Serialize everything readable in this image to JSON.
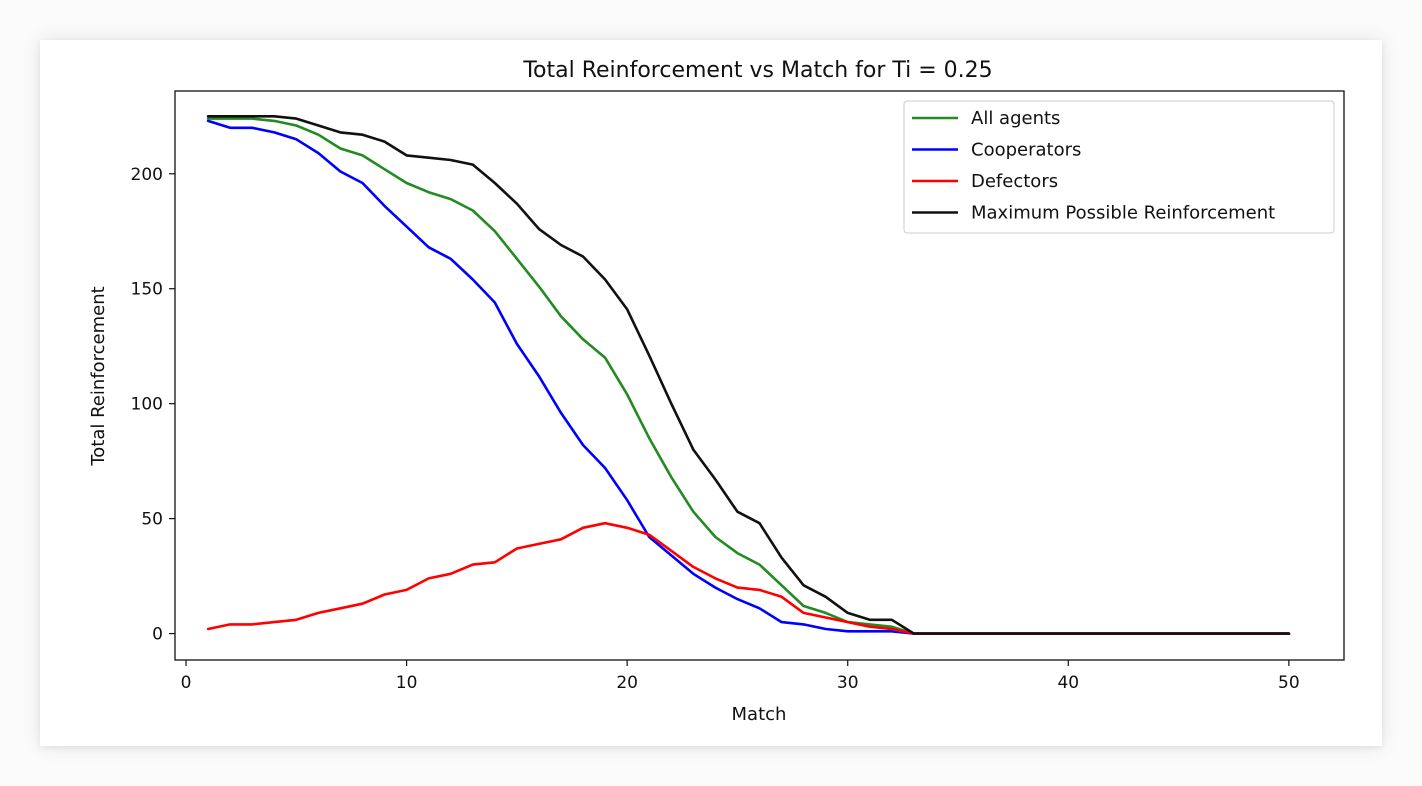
{
  "chart_data": {
    "type": "line",
    "title": "Total Reinforcement vs Match for Ti = 0.25",
    "xlabel": "Match",
    "ylabel": "Total Reinforcement",
    "xlim": [
      -0.5,
      52.5
    ],
    "ylim": [
      -11.5,
      236.0
    ],
    "xticks": [
      0,
      10,
      20,
      30,
      40,
      50
    ],
    "yticks": [
      0,
      50,
      100,
      150,
      200
    ],
    "grid": false,
    "legend_position": "top-right",
    "x": [
      1,
      2,
      3,
      4,
      5,
      6,
      7,
      8,
      9,
      10,
      11,
      12,
      13,
      14,
      15,
      16,
      17,
      18,
      19,
      20,
      21,
      22,
      23,
      24,
      25,
      26,
      27,
      28,
      29,
      30,
      31,
      32,
      33,
      34,
      35,
      36,
      37,
      38,
      39,
      40,
      41,
      42,
      43,
      44,
      45,
      46,
      47,
      48,
      49,
      50
    ],
    "series": [
      {
        "name": "All agents",
        "color": "#228b22",
        "values": [
          224,
          224,
          224,
          223,
          221,
          217,
          211,
          208,
          202,
          196,
          192,
          189,
          184,
          175,
          163,
          151,
          138,
          128,
          120,
          104,
          85,
          68,
          53,
          42,
          35,
          30,
          21,
          12,
          9,
          5,
          4,
          3,
          0,
          0,
          0,
          0,
          0,
          0,
          0,
          0,
          0,
          0,
          0,
          0,
          0,
          0,
          0,
          0,
          0,
          0
        ]
      },
      {
        "name": "Cooperators",
        "color": "#0000ff",
        "values": [
          223,
          220,
          220,
          218,
          215,
          209,
          201,
          196,
          186,
          177,
          168,
          163,
          154,
          144,
          126,
          112,
          96,
          82,
          72,
          58,
          42,
          34,
          26,
          20,
          15,
          11,
          5,
          4,
          2,
          1,
          1,
          1,
          0,
          0,
          0,
          0,
          0,
          0,
          0,
          0,
          0,
          0,
          0,
          0,
          0,
          0,
          0,
          0,
          0,
          0
        ]
      },
      {
        "name": "Defectors",
        "color": "#ff0000",
        "values": [
          2,
          4,
          4,
          5,
          6,
          9,
          11,
          13,
          17,
          19,
          24,
          26,
          30,
          31,
          37,
          39,
          41,
          46,
          48,
          46,
          43,
          36,
          29,
          24,
          20,
          19,
          16,
          9,
          7,
          5,
          3,
          2,
          0,
          0,
          0,
          0,
          0,
          0,
          0,
          0,
          0,
          0,
          0,
          0,
          0,
          0,
          0,
          0,
          0,
          0
        ]
      },
      {
        "name": "Maximum Possible Reinforcement",
        "color": "#111111",
        "values": [
          225,
          225,
          225,
          225,
          224,
          221,
          218,
          217,
          214,
          208,
          207,
          206,
          204,
          196,
          187,
          176,
          169,
          164,
          154,
          141,
          121,
          100,
          80,
          67,
          53,
          48,
          33,
          21,
          16,
          9,
          6,
          6,
          0,
          0,
          0,
          0,
          0,
          0,
          0,
          0,
          0,
          0,
          0,
          0,
          0,
          0,
          0,
          0,
          0,
          0
        ]
      }
    ]
  }
}
